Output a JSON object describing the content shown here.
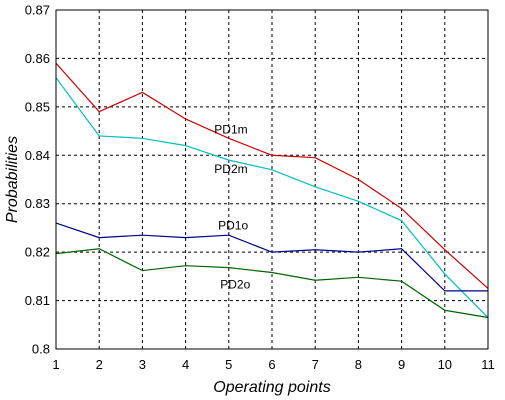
{
  "chart_data": {
    "type": "line",
    "xlabel": "Operating points",
    "ylabel": "Probabilities",
    "x": [
      1,
      2,
      3,
      4,
      5,
      6,
      7,
      8,
      9,
      10,
      11
    ],
    "xlim": [
      1,
      11
    ],
    "ylim": [
      0.8,
      0.87
    ],
    "xticks": [
      "1",
      "2",
      "3",
      "4",
      "5",
      "6",
      "7",
      "8",
      "9",
      "10",
      "11"
    ],
    "yticks": [
      "0.8",
      "0.81",
      "0.82",
      "0.83",
      "0.84",
      "0.85",
      "0.86",
      "0.87"
    ],
    "grid": true,
    "legend": "none",
    "series": [
      {
        "name": "PD1m",
        "color": "#cc0000",
        "label_at": [
          5.05,
          0.8445
        ],
        "values": [
          0.859,
          0.849,
          0.853,
          0.8475,
          0.8435,
          0.84,
          0.8395,
          0.835,
          0.829,
          0.8205,
          0.8125
        ]
      },
      {
        "name": "PD2m",
        "color": "#00bfbf",
        "label_at": [
          5.05,
          0.8363
        ],
        "values": [
          0.856,
          0.844,
          0.8435,
          0.842,
          0.839,
          0.837,
          0.8335,
          0.8305,
          0.8265,
          0.8155,
          0.8065
        ]
      },
      {
        "name": "PD1o",
        "color": "#00008b",
        "label_at": [
          5.1,
          0.8247
        ],
        "values": [
          0.826,
          0.823,
          0.8235,
          0.823,
          0.8235,
          0.82,
          0.8205,
          0.82,
          0.8207,
          0.812,
          0.812
        ]
      },
      {
        "name": "PD2o",
        "color": "#006400",
        "label_at": [
          5.15,
          0.8125
        ],
        "values": [
          0.8197,
          0.8207,
          0.8162,
          0.8172,
          0.8168,
          0.8158,
          0.8142,
          0.8148,
          0.814,
          0.808,
          0.8065
        ]
      }
    ]
  }
}
